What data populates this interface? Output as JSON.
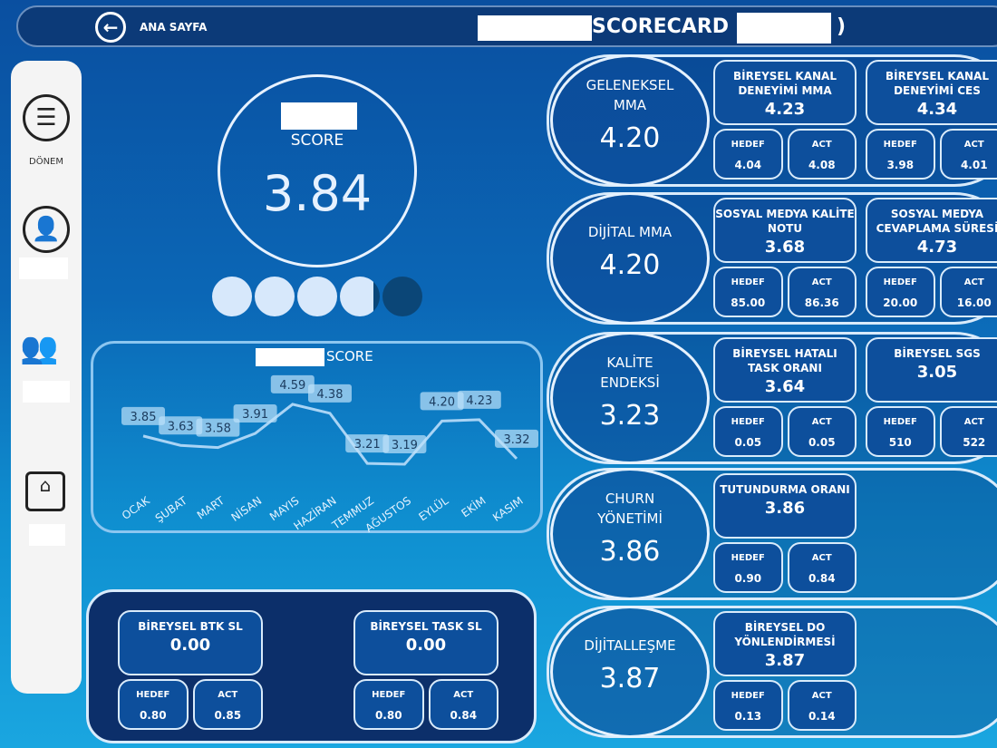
{
  "header": {
    "home_label": "ANA SAYFA",
    "title": "SCORECARD (",
    "title_close": ")"
  },
  "sidebar": {
    "items": [
      {
        "label": "DÖNEM",
        "icon": "list-icon"
      },
      {
        "icon": "user-icon"
      },
      {
        "icon": "team-icon"
      },
      {
        "icon": "router-icon"
      }
    ]
  },
  "score": {
    "label": "SCORE",
    "value": "3.84",
    "rating": 3.84,
    "rating_max": 5
  },
  "chart_data": {
    "type": "line",
    "title": "SCORE",
    "categories": [
      "OCAK",
      "ŞUBAT",
      "MART",
      "NİSAN",
      "MAYIS",
      "HAZİRAN",
      "TEMMUZ",
      "AĞUSTOS",
      "EYLÜL",
      "EKİM",
      "KASIM"
    ],
    "values": [
      3.85,
      3.63,
      3.58,
      3.91,
      4.59,
      4.38,
      3.21,
      3.19,
      4.2,
      4.23,
      3.32
    ],
    "labels": [
      "3.85",
      "3.63",
      "3.58",
      "3.91",
      "4.59",
      "4.38",
      "3.21",
      "3.19",
      "4.20",
      "4.23",
      "3.32"
    ]
  },
  "rows": [
    {
      "label": "GELENEKSEL MMA",
      "value": "4.20",
      "cards": [
        {
          "title": "BİREYSEL KANAL DENEYİMİ MMA",
          "value": "4.23",
          "hedef_label": "HEDEF",
          "hedef": "4.04",
          "act_label": "ACT",
          "act": "4.08"
        },
        {
          "title": "BİREYSEL KANAL DENEYİMİ CES",
          "value": "4.34",
          "hedef_label": "HEDEF",
          "hedef": "3.98",
          "act_label": "ACT",
          "act": "4.01"
        }
      ]
    },
    {
      "label": "DİJİTAL MMA",
      "value": "4.20",
      "cards": [
        {
          "title": "SOSYAL MEDYA KALİTE NOTU",
          "value": "3.68",
          "hedef_label": "HEDEF",
          "hedef": "85.00",
          "act_label": "ACT",
          "act": "86.36"
        },
        {
          "title": "SOSYAL MEDYA CEVAPLAMA SÜRESİ",
          "value": "4.73",
          "hedef_label": "HEDEF",
          "hedef": "20.00",
          "act_label": "ACT",
          "act": "16.00"
        }
      ]
    },
    {
      "label": "KALİTE ENDEKSİ",
      "value": "3.23",
      "cards": [
        {
          "title": "BİREYSEL HATALI TASK ORANI",
          "value": "3.64",
          "hedef_label": "HEDEF",
          "hedef": "0.05",
          "act_label": "ACT",
          "act": "0.05"
        },
        {
          "title": "BİREYSEL SGS",
          "value": "3.05",
          "hedef_label": "HEDEF",
          "hedef": "510",
          "act_label": "ACT",
          "act": "522"
        }
      ]
    },
    {
      "label": "CHURN YÖNETİMİ",
      "value": "3.86",
      "cards": [
        {
          "title": "TUTUNDURMA ORANI",
          "value": "3.86",
          "hedef_label": "HEDEF",
          "hedef": "0.90",
          "act_label": "ACT",
          "act": "0.84"
        }
      ]
    },
    {
      "label": "DİJİTALLEŞME",
      "value": "3.87",
      "cards": [
        {
          "title": "BİREYSEL DO YÖNLENDİRMESİ",
          "value": "3.87",
          "hedef_label": "HEDEF",
          "hedef": "0.13",
          "act_label": "ACT",
          "act": "0.14"
        }
      ]
    }
  ],
  "bottom": {
    "cards": [
      {
        "title": "BİREYSEL BTK SL",
        "value": "0.00",
        "hedef_label": "HEDEF",
        "hedef": "0.80",
        "act_label": "ACT",
        "act": "0.85"
      },
      {
        "title": "BİREYSEL TASK SL",
        "value": "0.00",
        "hedef_label": "HEDEF",
        "hedef": "0.80",
        "act_label": "ACT",
        "act": "0.84"
      }
    ]
  },
  "colors": {
    "background": "#0b67b6",
    "header": "#0c3a78",
    "card": "#0d4f9c",
    "rating_filled": "#d7e8fb",
    "rating_empty": "#0b4677"
  }
}
